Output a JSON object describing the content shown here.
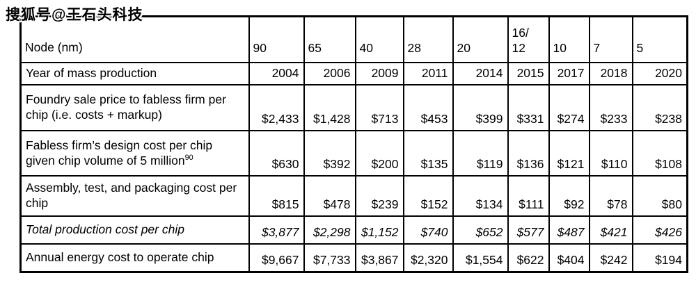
{
  "watermark": "搜狐号@王石头科技",
  "table": {
    "header": {
      "label": "Node (nm)",
      "columns": [
        "90",
        "65",
        "40",
        "28",
        "20",
        "16/\n12",
        "10",
        "7",
        "5"
      ]
    },
    "rows": [
      {
        "label": "Year of mass production",
        "italic": false,
        "values": [
          "2004",
          "2006",
          "2009",
          "2011",
          "2014",
          "2015",
          "2017",
          "2018",
          "2020"
        ]
      },
      {
        "label": "Foundry sale price to fabless firm per chip (i.e. costs + markup)",
        "italic": false,
        "values": [
          "$2,433",
          "$1,428",
          "$713",
          "$453",
          "$399",
          "$331",
          "$274",
          "$233",
          "$238"
        ]
      },
      {
        "label": "Fabless firm’s design cost per chip given chip volume of 5 million",
        "label_superscript": "90",
        "italic": false,
        "values": [
          "$630",
          "$392",
          "$200",
          "$135",
          "$119",
          "$136",
          "$121",
          "$110",
          "$108"
        ]
      },
      {
        "label": "Assembly, test, and packaging cost per chip",
        "italic": false,
        "values": [
          "$815",
          "$478",
          "$239",
          "$152",
          "$134",
          "$111",
          "$92",
          "$78",
          "$80"
        ]
      },
      {
        "label": "Total production cost per chip",
        "italic": true,
        "values": [
          "$3,877",
          "$2,298",
          "$1,152",
          "$740",
          "$652",
          "$577",
          "$487",
          "$421",
          "$426"
        ]
      },
      {
        "label": "Annual energy cost to operate chip",
        "italic": false,
        "values": [
          "$9,667",
          "$7,733",
          "$3,867",
          "$2,320",
          "$1,554",
          "$622",
          "$404",
          "$242",
          "$194"
        ]
      }
    ]
  }
}
